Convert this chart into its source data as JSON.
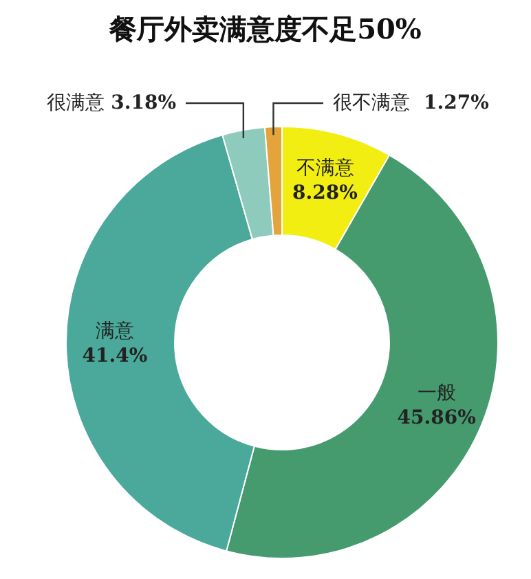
{
  "chart_data": {
    "type": "donut",
    "title": "餐厅外卖满意度不足50%",
    "categories": [
      "不满意",
      "一般",
      "满意",
      "很满意",
      "很不满意"
    ],
    "values": [
      8.28,
      45.86,
      41.4,
      3.18,
      1.27
    ],
    "colors": [
      "#f2ee12",
      "#459a6e",
      "#4aa99a",
      "#8fcbbd",
      "#e3a43c"
    ],
    "value_labels": [
      "8.28%",
      "45.86%",
      "41.4%",
      "3.18%",
      "1.27%"
    ],
    "legend": false
  }
}
